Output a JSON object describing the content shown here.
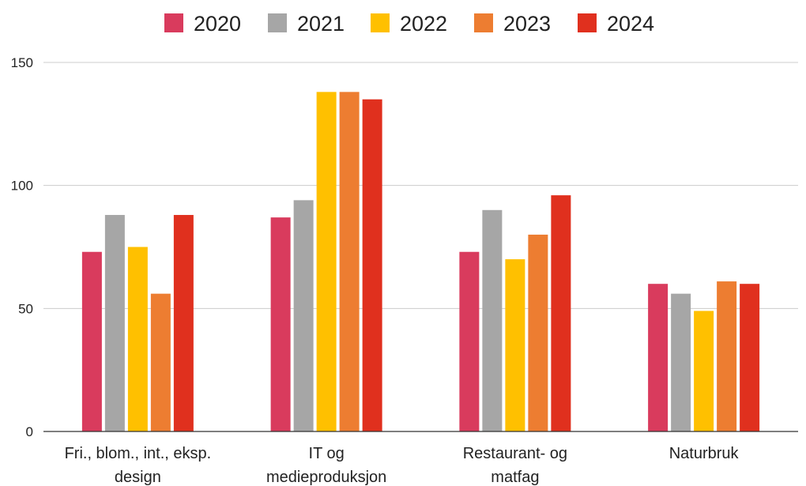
{
  "chart_data": {
    "type": "bar",
    "categories": [
      [
        "Fri., blom., int., eksp.",
        "design"
      ],
      [
        "IT og",
        "medieproduksjon"
      ],
      [
        "Restaurant- og",
        "matfag"
      ],
      [
        "Naturbruk"
      ]
    ],
    "series": [
      {
        "name": "2020",
        "color": "#D93B5D",
        "values": [
          73,
          87,
          73,
          60
        ]
      },
      {
        "name": "2021",
        "color": "#A6A6A6",
        "values": [
          88,
          94,
          90,
          56
        ]
      },
      {
        "name": "2022",
        "color": "#FFC000",
        "values": [
          75,
          138,
          70,
          49
        ]
      },
      {
        "name": "2023",
        "color": "#ED7D31",
        "values": [
          56,
          138,
          80,
          61
        ]
      },
      {
        "name": "2024",
        "color": "#E0301E",
        "values": [
          88,
          135,
          96,
          60
        ]
      }
    ],
    "ylim": [
      0,
      150
    ],
    "yticks": [
      0,
      50,
      100,
      150
    ],
    "grid": true,
    "legend_position": "top-center",
    "title": "",
    "xlabel": "",
    "ylabel": ""
  }
}
